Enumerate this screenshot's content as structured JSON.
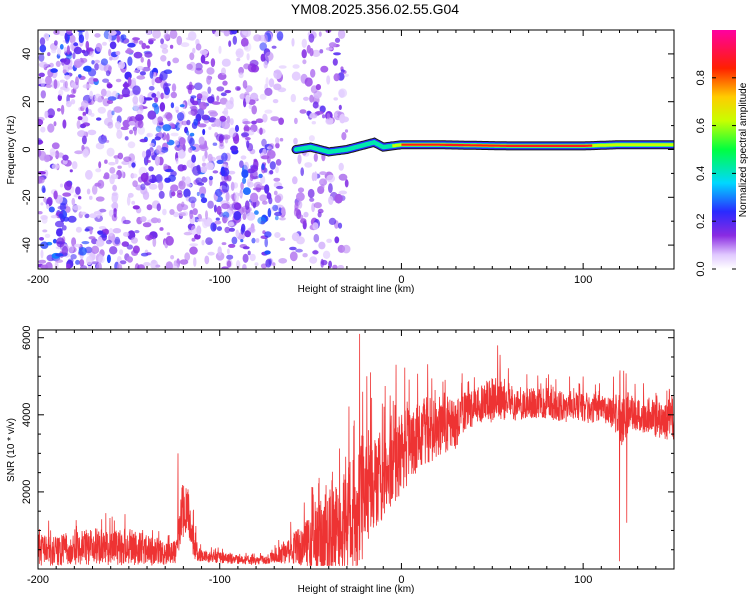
{
  "figure": {
    "title": "YM08.2025.356.02.55.G04"
  },
  "chart_data": [
    {
      "type": "heatmap",
      "title": "",
      "xlabel": "Height of straight line (km)",
      "ylabel": "Frequency (Hz)",
      "xlim": [
        -200,
        150
      ],
      "ylim": [
        -50,
        50
      ],
      "x_ticks": [
        -200,
        -100,
        0,
        100
      ],
      "x_tick_labels": [
        "-200",
        "-100",
        "0",
        "100"
      ],
      "y_ticks": [
        -40,
        -20,
        0,
        20,
        40
      ],
      "y_tick_labels": [
        "-40",
        "-20",
        "0",
        "20",
        "40"
      ],
      "colorbar": {
        "label": "Normalized spectral amplitude",
        "range": [
          0,
          1
        ],
        "ticks": [
          0.0,
          0.2,
          0.4,
          0.6,
          0.8
        ],
        "tick_labels": [
          "0.0",
          "0.2",
          "0.4",
          "0.6",
          "0.8"
        ],
        "colormap": "rainbow: white-violet-blue-cyan-green-yellow-red-magenta"
      },
      "features": [
        {
          "name": "scattered-noise",
          "x_range": [
            -200,
            -65
          ],
          "freq_range": [
            -50,
            50
          ],
          "amplitude": [
            0.05,
            0.3
          ]
        },
        {
          "name": "noise-column",
          "x_range": [
            -60,
            -30
          ],
          "freq_range": [
            -50,
            50
          ],
          "amplitude": [
            0.05,
            0.2
          ]
        },
        {
          "name": "carrier-track",
          "x_range": [
            -58,
            150
          ],
          "center_freq_hz": 1.5,
          "amplitude": [
            0.3,
            0.8
          ]
        }
      ],
      "carrier_track": {
        "x": [
          -58,
          -50,
          -40,
          -30,
          -20,
          -15,
          -10,
          0,
          20,
          60,
          100,
          120,
          150
        ],
        "freq": [
          0,
          1,
          -1,
          0,
          2,
          3,
          1,
          2,
          2,
          1.5,
          1.5,
          2,
          2
        ]
      }
    },
    {
      "type": "line",
      "title": "",
      "xlabel": "Height of straight line (km)",
      "ylabel": "SNR (10 * v/v)",
      "xlim": [
        -200,
        150
      ],
      "ylim": [
        0,
        6200
      ],
      "x_ticks": [
        -200,
        -100,
        0,
        100
      ],
      "x_tick_labels": [
        "-200",
        "-100",
        "0",
        "100"
      ],
      "y_ticks": [
        2000,
        4000,
        6000
      ],
      "y_tick_labels": [
        "2000",
        "4000",
        "6000"
      ],
      "line_color": "#ee3333",
      "series": [
        {
          "name": "SNR",
          "x": [
            -200,
            -190,
            -180,
            -170,
            -160,
            -150,
            -140,
            -130,
            -124,
            -121,
            -118,
            -115,
            -112,
            -105,
            -100,
            -90,
            -80,
            -70,
            -60,
            -50,
            -40,
            -35,
            -30,
            -25,
            -22,
            -20,
            -15,
            -10,
            -5,
            0,
            5,
            10,
            15,
            20,
            25,
            30,
            35,
            40,
            45,
            50,
            55,
            60,
            70,
            80,
            90,
            100,
            110,
            115,
            120,
            122,
            125,
            130,
            140,
            150
          ],
          "mean": [
            500,
            450,
            550,
            600,
            550,
            600,
            500,
            400,
            450,
            1400,
            1700,
            800,
            400,
            300,
            300,
            250,
            200,
            300,
            500,
            700,
            900,
            1000,
            1400,
            1500,
            1800,
            1800,
            2200,
            2500,
            2700,
            3000,
            3300,
            3500,
            3600,
            3650,
            3700,
            3800,
            4100,
            4200,
            4300,
            4350,
            4400,
            4300,
            4300,
            4300,
            4200,
            4200,
            4100,
            4100,
            4000,
            3800,
            4100,
            4000,
            3900,
            3800
          ],
          "amp": [
            400,
            400,
            450,
            500,
            450,
            500,
            400,
            300,
            300,
            700,
            700,
            500,
            200,
            150,
            150,
            120,
            100,
            150,
            400,
            700,
            1200,
            1000,
            1500,
            1500,
            1600,
            1400,
            1200,
            1200,
            1100,
            1100,
            1000,
            900,
            900,
            700,
            700,
            700,
            500,
            500,
            500,
            600,
            600,
            500,
            400,
            400,
            400,
            400,
            400,
            400,
            600,
            700,
            500,
            400,
            500,
            500
          ],
          "spikes": [
            {
              "x": -123,
              "y": 3000
            },
            {
              "x": -23,
              "y": 6100
            },
            {
              "x": -19,
              "y": 5000
            },
            {
              "x": -17,
              "y": 5100
            },
            {
              "x": -3,
              "y": 5300
            },
            {
              "x": 53,
              "y": 5800
            },
            {
              "x": 120,
              "y": 200
            },
            {
              "x": 124,
              "y": 1200
            }
          ]
        }
      ]
    }
  ]
}
